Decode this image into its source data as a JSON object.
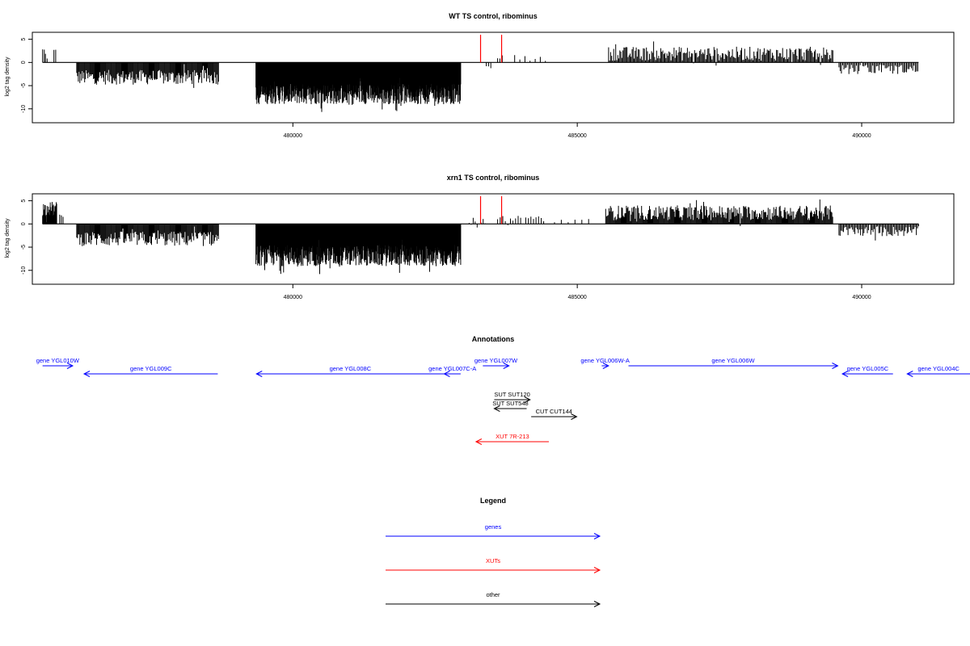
{
  "colors": {
    "genes": "#0000ff",
    "xuts": "#ff0000",
    "other": "#000000",
    "bars": "#000000",
    "markers": "#ff0000"
  },
  "chart_data": [
    {
      "type": "bar",
      "title": "WT TS control, ribominus",
      "ylabel": "log2 tag density",
      "xlim": [
        475420,
        491620
      ],
      "ylim": [
        -13,
        6.5
      ],
      "xticks": [
        480000,
        485000,
        490000
      ],
      "yticks": [
        5,
        0,
        -5,
        -10
      ],
      "red_markers": [
        483300,
        483670
      ],
      "segments": [
        {
          "start": 475600,
          "end": 475650,
          "mean": 2.5,
          "amp": 1.0,
          "step": 30
        },
        {
          "start": 475650,
          "end": 475700,
          "mean": 1.5,
          "amp": 1.0,
          "step": 30
        },
        {
          "start": 475800,
          "end": 475830,
          "mean": 2.5,
          "amp": 0.5,
          "step": 30
        },
        {
          "start": 476200,
          "end": 478700,
          "mean": -3.2,
          "amp": 1.6,
          "step": 14
        },
        {
          "start": 479350,
          "end": 482950,
          "mean": -6.8,
          "amp": 2.2,
          "step": 6
        },
        {
          "start": 483400,
          "end": 483480,
          "mean": -0.8,
          "amp": 0.5,
          "step": 40
        },
        {
          "start": 483600,
          "end": 483700,
          "mean": 1.2,
          "amp": 0.5,
          "step": 40
        },
        {
          "start": 483900,
          "end": 484450,
          "mean": 0.8,
          "amp": 0.6,
          "step": 90
        },
        {
          "start": 485550,
          "end": 489500,
          "mean": 1.9,
          "amp": 1.5,
          "step": 18
        },
        {
          "start": 489600,
          "end": 491000,
          "mean": -1.5,
          "amp": 1.0,
          "step": 22
        }
      ]
    },
    {
      "type": "bar",
      "title": "xrn1 TS control, ribominus",
      "ylabel": "log2 tag density",
      "xlim": [
        475420,
        491620
      ],
      "ylim": [
        -13,
        6.5
      ],
      "xticks": [
        480000,
        485000,
        490000
      ],
      "yticks": [
        5,
        0,
        -5,
        -10
      ],
      "red_markers": [
        483300,
        483670
      ],
      "segments": [
        {
          "start": 475600,
          "end": 475850,
          "mean": 3.2,
          "amp": 1.6,
          "step": 8
        },
        {
          "start": 475900,
          "end": 475960,
          "mean": 2.0,
          "amp": 0.5,
          "step": 30
        },
        {
          "start": 476200,
          "end": 478700,
          "mean": -3.2,
          "amp": 1.6,
          "step": 14
        },
        {
          "start": 479350,
          "end": 482950,
          "mean": -6.8,
          "amp": 2.3,
          "step": 6
        },
        {
          "start": 483100,
          "end": 483400,
          "mean": 0.6,
          "amp": 0.8,
          "step": 35
        },
        {
          "start": 483600,
          "end": 484450,
          "mean": 1.0,
          "amp": 1.0,
          "step": 45
        },
        {
          "start": 484600,
          "end": 485300,
          "mean": 0.7,
          "amp": 0.6,
          "step": 120
        },
        {
          "start": 485500,
          "end": 489500,
          "mean": 2.4,
          "amp": 1.6,
          "step": 14
        },
        {
          "start": 489600,
          "end": 491000,
          "mean": -1.6,
          "amp": 1.1,
          "step": 20
        }
      ]
    }
  ],
  "annotations": {
    "title": "Annotations",
    "features": [
      {
        "label": "gene YGL010W",
        "start": 475600,
        "end": 476130,
        "strand": "+",
        "class": "genes",
        "row": 0
      },
      {
        "label": "gene YGL009C",
        "start": 476330,
        "end": 478680,
        "strand": "-",
        "class": "genes",
        "row": 1
      },
      {
        "label": "gene YGL008C",
        "start": 479360,
        "end": 482660,
        "strand": "-",
        "class": "genes",
        "row": 1
      },
      {
        "label": "gene YGL007C-A",
        "start": 482660,
        "end": 482950,
        "strand": "-",
        "class": "genes",
        "row": 1
      },
      {
        "label": "gene YGL007W",
        "start": 483340,
        "end": 483800,
        "strand": "+",
        "class": "genes",
        "row": 0
      },
      {
        "label": "gene YGL006W-A",
        "start": 485430,
        "end": 485550,
        "strand": "+",
        "class": "genes",
        "row": 0
      },
      {
        "label": "gene YGL006W",
        "start": 485900,
        "end": 489580,
        "strand": "+",
        "class": "genes",
        "row": 0
      },
      {
        "label": "gene YGL005C",
        "start": 489660,
        "end": 490550,
        "strand": "-",
        "class": "genes",
        "row": 1
      },
      {
        "label": "gene YGL004C",
        "start": 490800,
        "end": 492000,
        "strand": "-",
        "class": "genes",
        "row": 1
      },
      {
        "label": "SUT SUT120",
        "start": 483540,
        "end": 484170,
        "strand": "+",
        "class": "other",
        "row": 2
      },
      {
        "label": "SUT SUT548",
        "start": 483540,
        "end": 484110,
        "strand": "-",
        "class": "other",
        "row": 3
      },
      {
        "label": "CUT CUT144",
        "start": 484190,
        "end": 484990,
        "strand": "+",
        "class": "other",
        "row": 4
      },
      {
        "label": "XUT 7R-213",
        "start": 483220,
        "end": 484500,
        "strand": "-",
        "class": "xuts",
        "row": 5
      }
    ]
  },
  "legend": {
    "title": "Legend",
    "items": [
      {
        "label": "genes",
        "class": "genes"
      },
      {
        "label": "XUTs",
        "class": "xuts"
      },
      {
        "label": "other",
        "class": "other"
      }
    ]
  }
}
